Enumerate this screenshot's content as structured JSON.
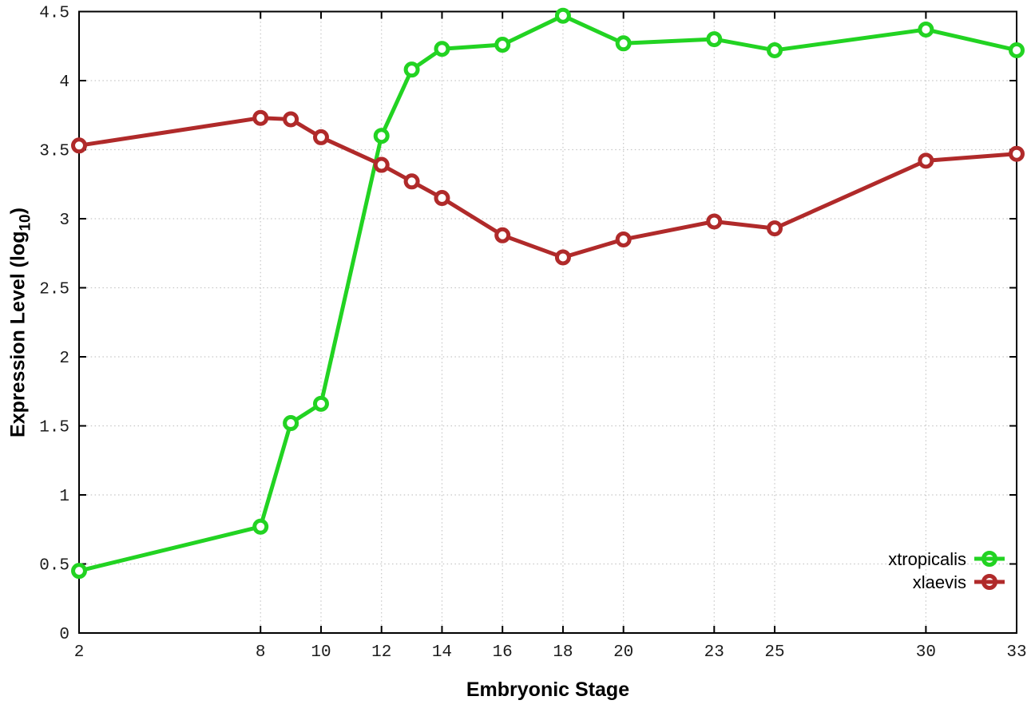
{
  "chart_data": {
    "type": "line",
    "title": "",
    "xlabel": "Embryonic Stage",
    "ylabel": "Expression Level (log10)",
    "ylabel_parts": {
      "prefix": "Expression Level (log",
      "sub": "10",
      "suffix": ")"
    },
    "x": [
      2,
      8,
      9,
      10,
      12,
      13,
      14,
      16,
      18,
      20,
      23,
      25,
      30,
      33
    ],
    "series": [
      {
        "name": "xtropicalis",
        "color": "#22d322",
        "values": [
          0.45,
          0.77,
          1.52,
          1.66,
          3.6,
          4.08,
          4.23,
          4.26,
          4.47,
          4.27,
          4.3,
          4.22,
          4.37,
          4.22
        ]
      },
      {
        "name": "xlaevis",
        "color": "#b02a2a",
        "values": [
          3.53,
          3.73,
          3.72,
          3.59,
          3.39,
          3.27,
          3.15,
          2.88,
          2.72,
          2.85,
          2.98,
          2.93,
          3.42,
          3.47
        ]
      }
    ],
    "xticks": [
      2,
      8,
      10,
      12,
      14,
      16,
      18,
      20,
      23,
      25,
      30,
      33
    ],
    "yticks": [
      0,
      0.5,
      1,
      1.5,
      2,
      2.5,
      3,
      3.5,
      4,
      4.5
    ],
    "xlim": [
      2,
      33
    ],
    "ylim": [
      0,
      4.5
    ],
    "grid": true,
    "grid_style": "dotted",
    "grid_color": "#c6c6c6",
    "axis_color": "#000000",
    "tick_label_color": "#1c1c1c",
    "marker": "open-circle",
    "legend_position": "inside-bottom-right",
    "legend_entries": [
      "xtropicalis",
      "xlaevis"
    ]
  }
}
